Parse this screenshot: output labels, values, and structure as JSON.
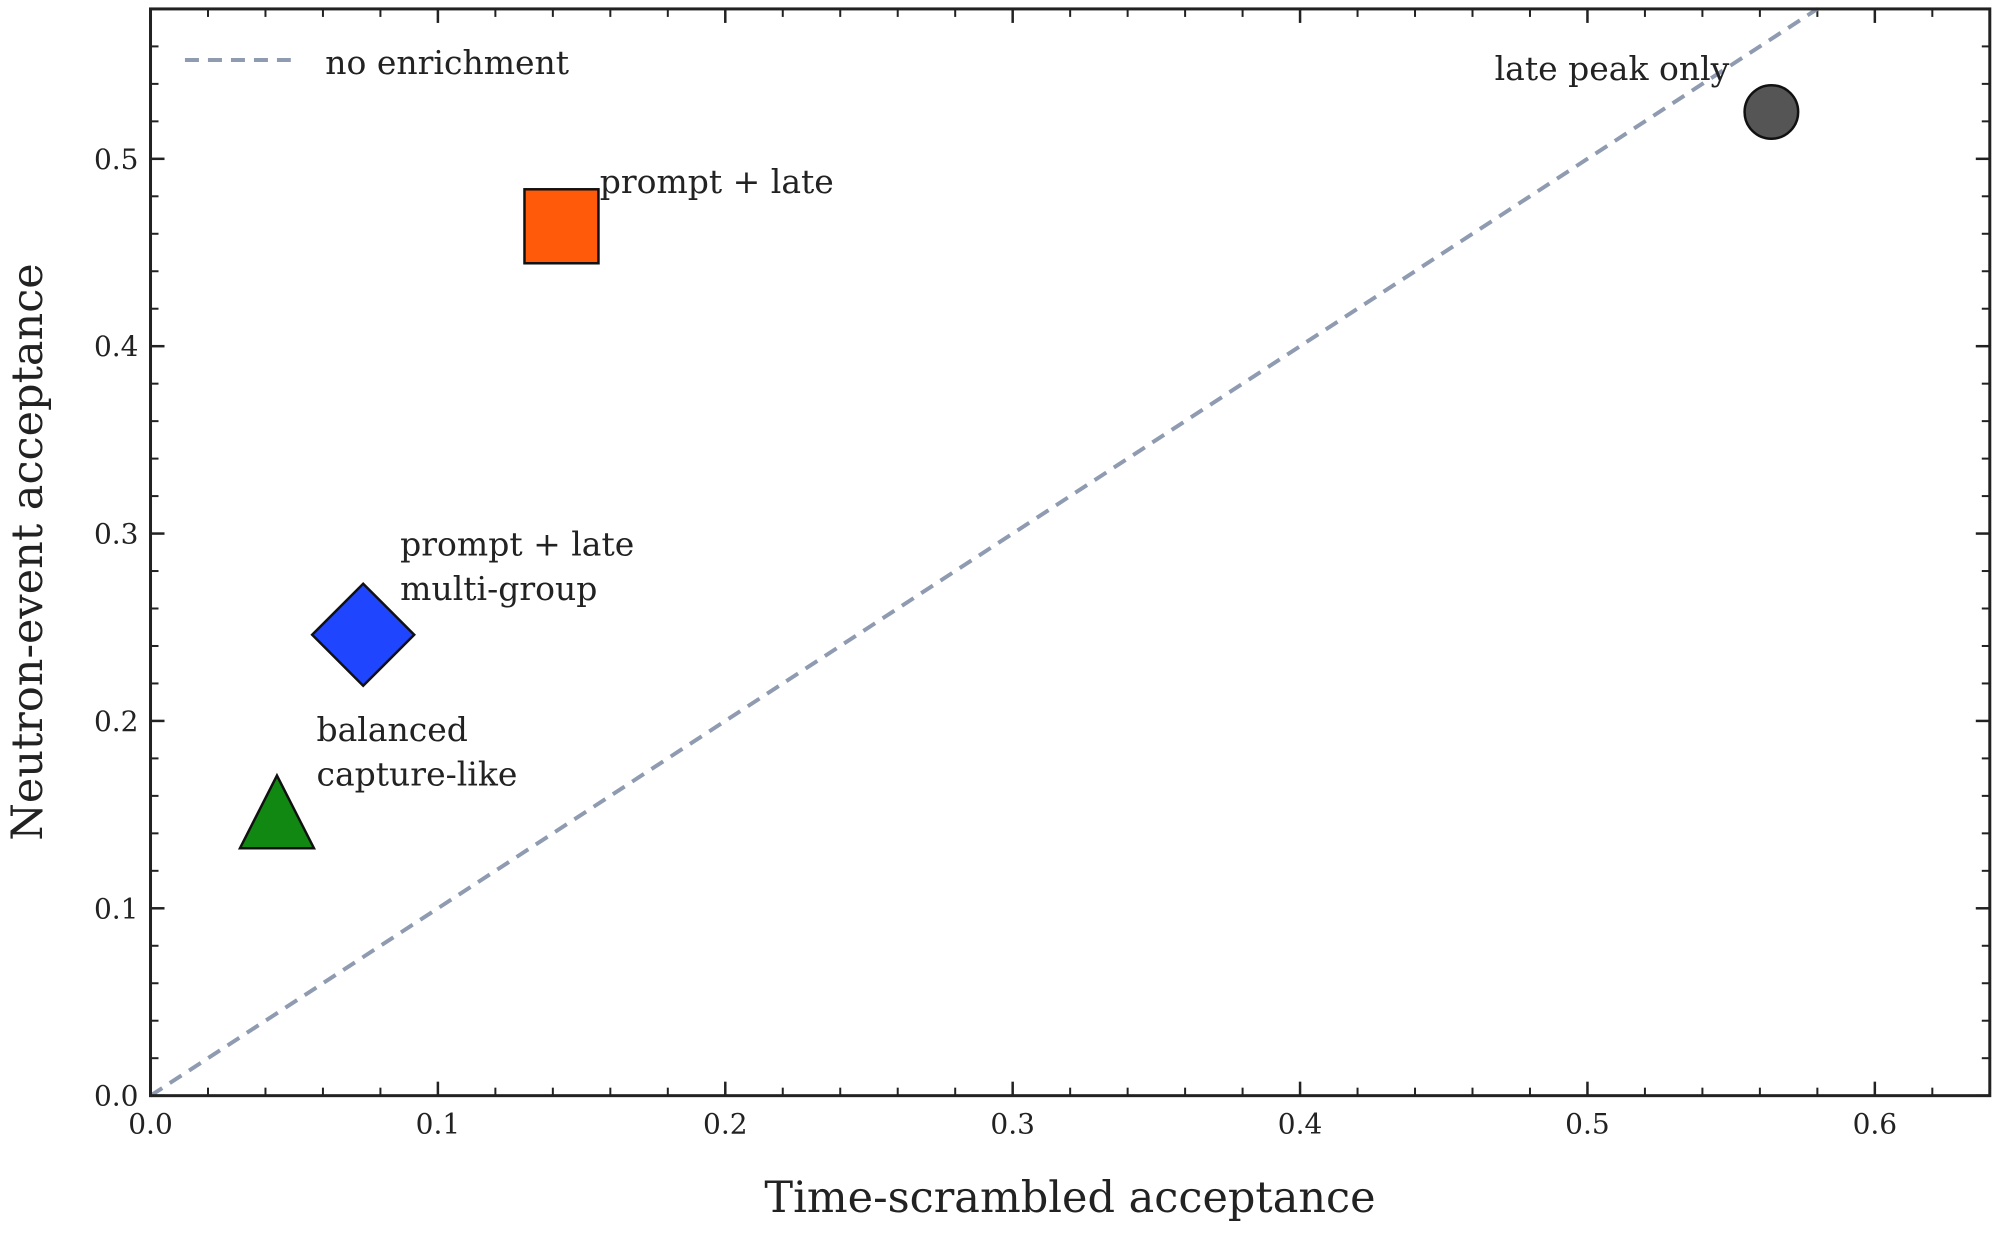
{
  "chart_data": {
    "type": "scatter",
    "xlabel": "Time-scrambled acceptance",
    "ylabel": "Neutron-event acceptance",
    "xlim": [
      0,
      0.64
    ],
    "ylim": [
      0,
      0.58
    ],
    "xticks": [
      {
        "value": 0,
        "label": "0.0"
      },
      0.1,
      0.2,
      0.3,
      0.4,
      0.5,
      0.6
    ],
    "yticks": [
      {
        "value": 0,
        "label": "0.0"
      },
      0.1,
      0.2,
      0.3,
      0.4,
      0.5
    ],
    "xminorticks": [
      0.02,
      0.04,
      0.06,
      0.08,
      0.12,
      0.14,
      0.16,
      0.18,
      0.22,
      0.24,
      0.26,
      0.28,
      0.32,
      0.34,
      0.36,
      0.38,
      0.42,
      0.44,
      0.46,
      0.48,
      0.52,
      0.54,
      0.56,
      0.58,
      0.62
    ],
    "yminorticks": [
      0.02,
      0.04,
      0.06,
      0.08,
      0.12,
      0.14,
      0.16,
      0.18,
      0.22,
      0.24,
      0.26,
      0.28,
      0.32,
      0.34,
      0.36,
      0.38,
      0.42,
      0.44,
      0.46,
      0.48,
      0.52,
      0.54,
      0.56
    ],
    "reference_line": {
      "name": "no enrichment",
      "color": "#8f9bb0",
      "x": [
        0,
        0.58
      ],
      "values": [
        0,
        0.58
      ]
    },
    "series": [
      {
        "label": [
          "late peak only"
        ],
        "marker": "circle",
        "color": "#555555",
        "x": [
          0.564
        ],
        "values": [
          0.525
        ]
      },
      {
        "label": [
          "prompt + late"
        ],
        "marker": "square",
        "color": "#ff5a0a",
        "x": [
          0.143
        ],
        "values": [
          0.464
        ]
      },
      {
        "label": [
          "prompt + late",
          "multi-group"
        ],
        "marker": "diamond",
        "color": "#1f45ff",
        "x": [
          0.074
        ],
        "values": [
          0.246
        ]
      },
      {
        "label": [
          "balanced",
          "capture-like"
        ],
        "marker": "triangle",
        "color": "#118811",
        "x": [
          0.044
        ],
        "values": [
          0.145
        ]
      }
    ]
  }
}
